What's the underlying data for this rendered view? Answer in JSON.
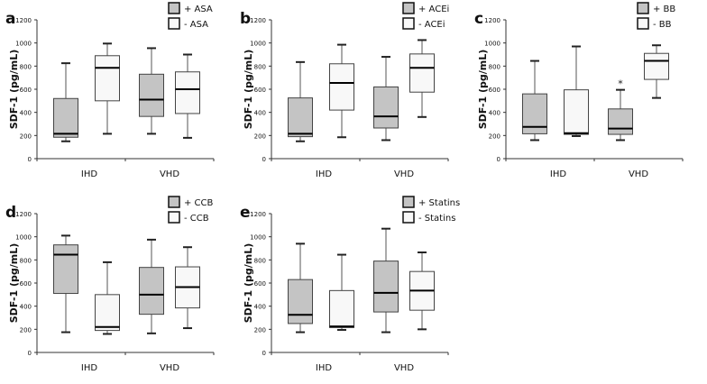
{
  "chart_data": [
    {
      "type": "box",
      "panel": "a",
      "ylabel": "SDF-1 (pg/mL)",
      "ylim": [
        0,
        1200
      ],
      "yticks": [
        0,
        200,
        400,
        600,
        800,
        1000,
        1200
      ],
      "categories": [
        "IHD",
        "VHD"
      ],
      "legend": [
        "+ ASA",
        "- ASA"
      ],
      "series": [
        {
          "name": "+ ASA",
          "boxes": [
            [
              150,
              185,
              215,
              520,
              825
            ],
            [
              215,
              365,
              510,
              730,
              955
            ]
          ]
        },
        {
          "name": "- ASA",
          "boxes": [
            [
              215,
              500,
              785,
              890,
              995
            ],
            [
              180,
              390,
              600,
              750,
              900
            ]
          ]
        }
      ]
    },
    {
      "type": "box",
      "panel": "b",
      "ylabel": "SDF-1 (pg/mL)",
      "ylim": [
        0,
        1200
      ],
      "yticks": [
        0,
        200,
        400,
        600,
        800,
        1000,
        1200
      ],
      "categories": [
        "IHD",
        "VHD"
      ],
      "legend": [
        "+ ACEi",
        "- ACEi"
      ],
      "series": [
        {
          "name": "+ ACEi",
          "boxes": [
            [
              150,
              190,
              215,
              525,
              835
            ],
            [
              160,
              265,
              365,
              620,
              880
            ]
          ]
        },
        {
          "name": "- ACEi",
          "boxes": [
            [
              185,
              420,
              655,
              820,
              985
            ],
            [
              360,
              575,
              785,
              905,
              1025
            ]
          ]
        }
      ]
    },
    {
      "type": "box",
      "panel": "c",
      "ylabel": "SDF-1 (pg/mL)",
      "ylim": [
        0,
        1200
      ],
      "yticks": [
        0,
        200,
        400,
        600,
        800,
        1000,
        1200
      ],
      "categories": [
        "IHD",
        "VHD"
      ],
      "legend": [
        "+ BB",
        "- BB"
      ],
      "series": [
        {
          "name": "+ BB",
          "boxes": [
            [
              160,
              215,
              275,
              560,
              845
            ],
            [
              160,
              210,
              260,
              430,
              595
            ]
          ]
        },
        {
          "name": "- BB",
          "boxes": [
            [
              195,
              210,
              220,
              595,
              970
            ],
            [
              525,
              685,
              845,
              910,
              980
            ]
          ]
        }
      ],
      "annotations": [
        {
          "text": "*",
          "series": 0,
          "category": 1
        }
      ]
    },
    {
      "type": "box",
      "panel": "d",
      "ylabel": "SDF-1 (pg/mL)",
      "ylim": [
        0,
        1200
      ],
      "yticks": [
        0,
        200,
        400,
        600,
        800,
        1000,
        1200
      ],
      "categories": [
        "IHD",
        "VHD"
      ],
      "legend": [
        "+ CCB",
        "- CCB"
      ],
      "series": [
        {
          "name": "+ CCB",
          "boxes": [
            [
              175,
              510,
              845,
              930,
              1010
            ],
            [
              165,
              330,
              500,
              735,
              975
            ]
          ]
        },
        {
          "name": "- CCB",
          "boxes": [
            [
              160,
              190,
              220,
              500,
              780
            ],
            [
              210,
              385,
              565,
              740,
              910
            ]
          ]
        }
      ]
    },
    {
      "type": "box",
      "panel": "e",
      "ylabel": "SDF-1 (pg/mL)",
      "ylim": [
        0,
        1200
      ],
      "yticks": [
        0,
        200,
        400,
        600,
        800,
        1000,
        1200
      ],
      "categories": [
        "IHD",
        "VHD"
      ],
      "legend": [
        "+ Statins",
        "- Statins"
      ],
      "series": [
        {
          "name": "+ Statins",
          "boxes": [
            [
              175,
              250,
              325,
              630,
              940
            ],
            [
              175,
              350,
              515,
              790,
              1070
            ]
          ]
        },
        {
          "name": "- Statins",
          "boxes": [
            [
              195,
              215,
              225,
              535,
              845
            ],
            [
              200,
              365,
              535,
              700,
              865
            ]
          ]
        }
      ]
    }
  ],
  "colors": {
    "with": "#c4c4c4",
    "without": "#f8f8f8",
    "line": "#222222",
    "whisker": "#555555"
  }
}
